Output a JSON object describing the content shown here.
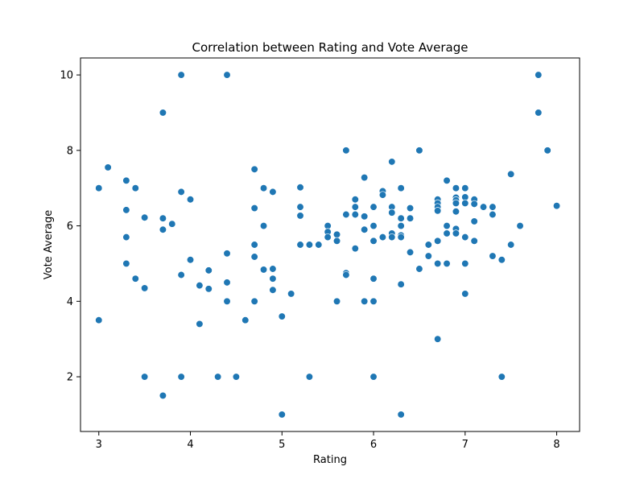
{
  "chart_data": {
    "type": "scatter",
    "title": "Correlation between Rating and Vote Average",
    "xlabel": "Rating",
    "ylabel": "Vote Average",
    "xlim": [
      2.8,
      8.25
    ],
    "ylim": [
      0.55,
      10.45
    ],
    "xticks": [
      3,
      4,
      5,
      6,
      7,
      8
    ],
    "yticks": [
      2,
      4,
      6,
      8,
      10
    ],
    "grid": false,
    "color": "#1f77b4",
    "points": [
      [
        3.0,
        7.0
      ],
      [
        3.0,
        3.5
      ],
      [
        3.1,
        7.55
      ],
      [
        3.3,
        7.2
      ],
      [
        3.3,
        6.42
      ],
      [
        3.3,
        5.7
      ],
      [
        3.3,
        5.0
      ],
      [
        3.4,
        7.0
      ],
      [
        3.4,
        4.6
      ],
      [
        3.5,
        6.22
      ],
      [
        3.5,
        4.35
      ],
      [
        3.5,
        2.0
      ],
      [
        3.7,
        9.0
      ],
      [
        3.7,
        6.2
      ],
      [
        3.7,
        5.9
      ],
      [
        3.7,
        1.5
      ],
      [
        3.8,
        6.05
      ],
      [
        3.9,
        10.0
      ],
      [
        3.9,
        6.9
      ],
      [
        3.9,
        4.7
      ],
      [
        3.9,
        2.0
      ],
      [
        4.0,
        6.7
      ],
      [
        4.0,
        5.1
      ],
      [
        4.1,
        4.42
      ],
      [
        4.1,
        3.4
      ],
      [
        4.2,
        4.82
      ],
      [
        4.2,
        4.33
      ],
      [
        4.3,
        2.0
      ],
      [
        4.4,
        10.0
      ],
      [
        4.4,
        5.27
      ],
      [
        4.4,
        4.5
      ],
      [
        4.4,
        4.0
      ],
      [
        4.5,
        2.0
      ],
      [
        4.6,
        3.5
      ],
      [
        4.7,
        7.5
      ],
      [
        4.7,
        6.47
      ],
      [
        4.7,
        5.5
      ],
      [
        4.7,
        5.18
      ],
      [
        4.7,
        4.0
      ],
      [
        4.8,
        7.0
      ],
      [
        4.8,
        6.0
      ],
      [
        4.8,
        4.84
      ],
      [
        4.9,
        6.9
      ],
      [
        4.9,
        4.86
      ],
      [
        4.9,
        4.6
      ],
      [
        4.9,
        4.3
      ],
      [
        5.0,
        3.6
      ],
      [
        5.0,
        1.0
      ],
      [
        5.1,
        4.2
      ],
      [
        5.2,
        7.02
      ],
      [
        5.2,
        6.5
      ],
      [
        5.2,
        6.27
      ],
      [
        5.2,
        5.5
      ],
      [
        5.3,
        5.5
      ],
      [
        5.3,
        2.0
      ],
      [
        5.4,
        5.5
      ],
      [
        5.5,
        6.0
      ],
      [
        5.5,
        5.84
      ],
      [
        5.5,
        5.7
      ],
      [
        5.6,
        5.77
      ],
      [
        5.6,
        5.6
      ],
      [
        5.6,
        4.0
      ],
      [
        5.7,
        8.0
      ],
      [
        5.7,
        6.3
      ],
      [
        5.7,
        4.75
      ],
      [
        5.7,
        4.7
      ],
      [
        5.8,
        6.7
      ],
      [
        5.8,
        6.5
      ],
      [
        5.8,
        6.3
      ],
      [
        5.8,
        5.4
      ],
      [
        5.9,
        7.28
      ],
      [
        5.9,
        6.25
      ],
      [
        5.9,
        5.9
      ],
      [
        5.9,
        4.0
      ],
      [
        6.0,
        6.5
      ],
      [
        6.0,
        6.0
      ],
      [
        6.0,
        5.6
      ],
      [
        6.0,
        4.6
      ],
      [
        6.0,
        4.0
      ],
      [
        6.0,
        2.0
      ],
      [
        6.1,
        6.92
      ],
      [
        6.1,
        6.82
      ],
      [
        6.1,
        5.7
      ],
      [
        6.2,
        7.7
      ],
      [
        6.2,
        6.5
      ],
      [
        6.2,
        6.35
      ],
      [
        6.2,
        5.8
      ],
      [
        6.2,
        5.7
      ],
      [
        6.3,
        7.0
      ],
      [
        6.3,
        6.2
      ],
      [
        6.3,
        6.0
      ],
      [
        6.3,
        5.75
      ],
      [
        6.3,
        5.7
      ],
      [
        6.3,
        4.45
      ],
      [
        6.3,
        1.0
      ],
      [
        6.4,
        6.47
      ],
      [
        6.4,
        6.2
      ],
      [
        6.4,
        5.3
      ],
      [
        6.5,
        8.0
      ],
      [
        6.5,
        4.86
      ],
      [
        6.6,
        5.5
      ],
      [
        6.6,
        5.2
      ],
      [
        6.7,
        6.7
      ],
      [
        6.7,
        6.6
      ],
      [
        6.7,
        6.5
      ],
      [
        6.7,
        6.4
      ],
      [
        6.7,
        5.6
      ],
      [
        6.7,
        5.0
      ],
      [
        6.7,
        3.0
      ],
      [
        6.8,
        7.2
      ],
      [
        6.8,
        6.0
      ],
      [
        6.8,
        5.8
      ],
      [
        6.8,
        5.0
      ],
      [
        6.9,
        7.0
      ],
      [
        6.9,
        6.75
      ],
      [
        6.9,
        6.68
      ],
      [
        6.9,
        6.6
      ],
      [
        6.9,
        6.38
      ],
      [
        6.9,
        5.92
      ],
      [
        6.9,
        5.8
      ],
      [
        7.0,
        7.0
      ],
      [
        7.0,
        6.76
      ],
      [
        7.0,
        6.6
      ],
      [
        7.0,
        5.7
      ],
      [
        7.0,
        5.0
      ],
      [
        7.0,
        4.2
      ],
      [
        7.1,
        6.7
      ],
      [
        7.1,
        6.58
      ],
      [
        7.1,
        6.12
      ],
      [
        7.1,
        5.6
      ],
      [
        7.2,
        6.5
      ],
      [
        7.3,
        6.5
      ],
      [
        7.3,
        6.3
      ],
      [
        7.3,
        5.2
      ],
      [
        7.4,
        5.1
      ],
      [
        7.4,
        2.0
      ],
      [
        7.5,
        7.37
      ],
      [
        7.5,
        5.5
      ],
      [
        7.6,
        6.0
      ],
      [
        7.8,
        10.0
      ],
      [
        7.8,
        9.0
      ],
      [
        7.9,
        8.0
      ],
      [
        8.0,
        6.53
      ]
    ]
  }
}
